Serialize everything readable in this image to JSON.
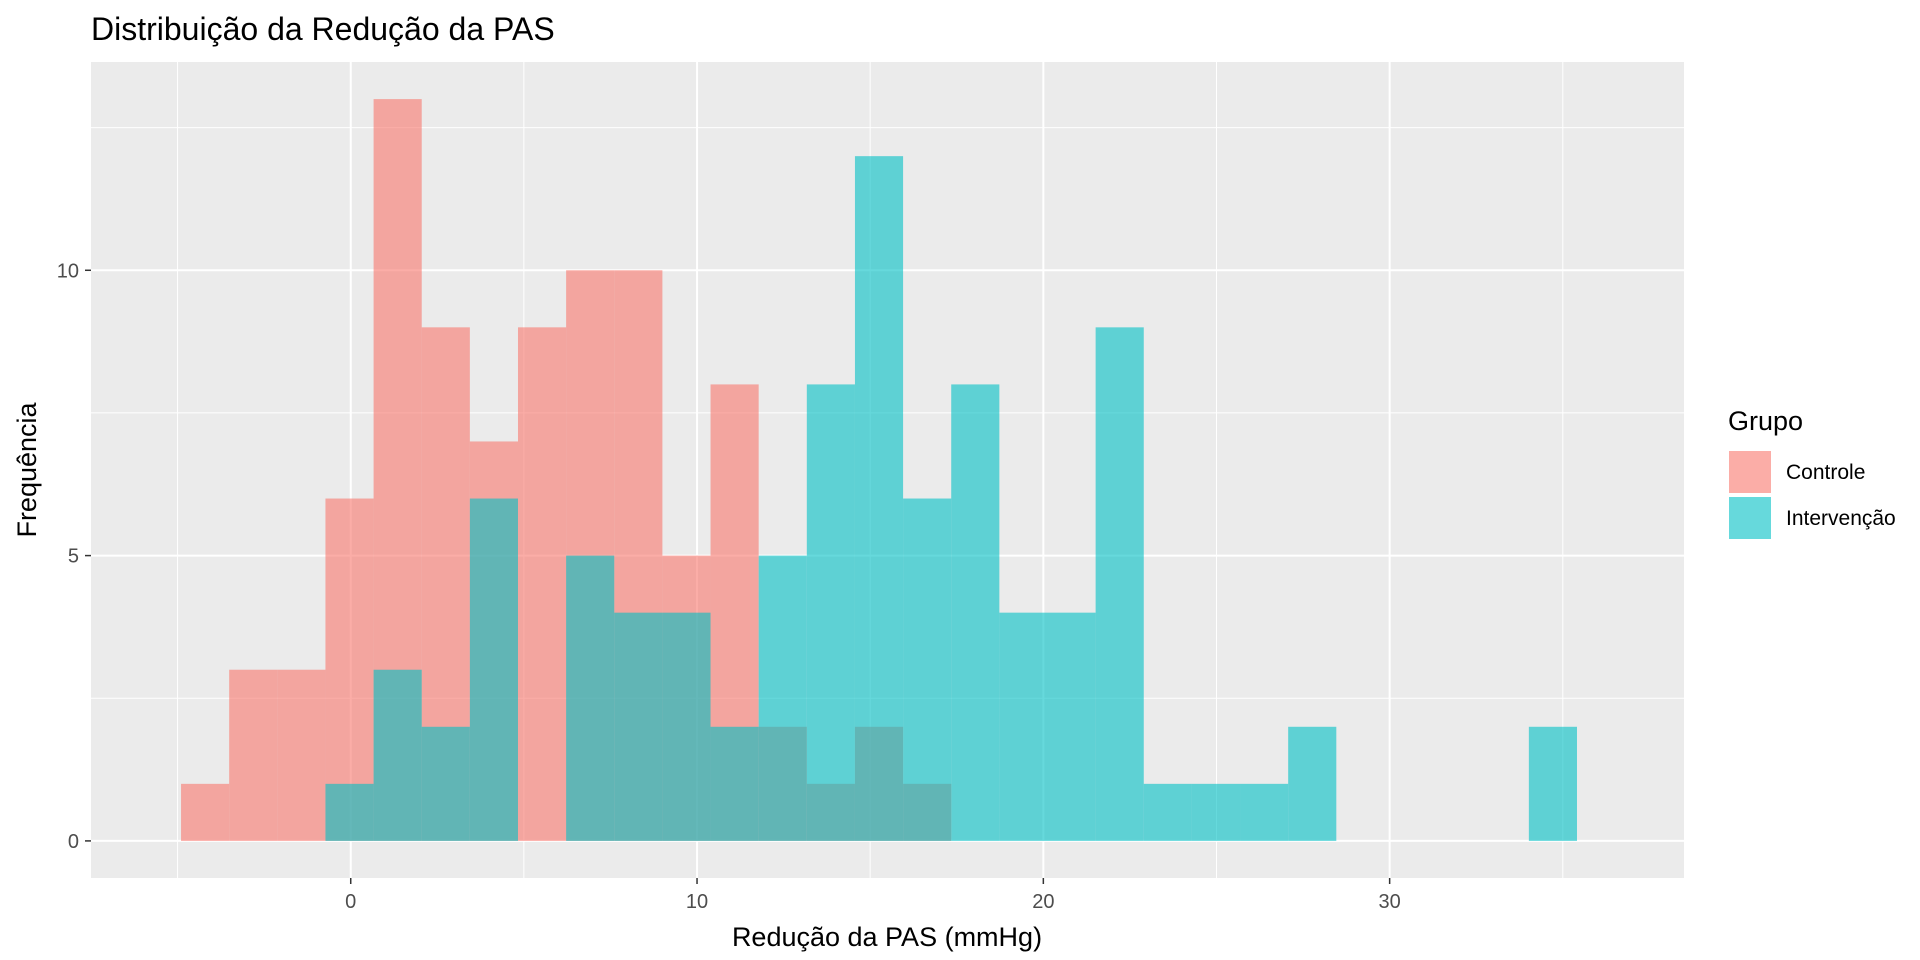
{
  "chart_data": {
    "type": "histogram",
    "title": "Distribuição da Redução da PAS",
    "xlabel": "Redução da PAS (mmHg)",
    "ylabel": "Frequência",
    "xlim": [
      -7.5,
      38.5
    ],
    "ylim": [
      -0.65,
      13.65
    ],
    "x_ticks": [
      0,
      10,
      20,
      30
    ],
    "y_ticks": [
      0,
      5,
      10
    ],
    "bin_width": 1.39,
    "bin_start": -4.9,
    "grid": true,
    "legend": {
      "title": "Grupo",
      "position": "right"
    },
    "series": [
      {
        "name": "Controle",
        "color": "#F8766D",
        "counts": [
          1,
          3,
          3,
          6,
          13,
          9,
          7,
          9,
          10,
          10,
          5,
          8,
          2,
          1,
          2,
          1
        ]
      },
      {
        "name": "Intervenção",
        "color": "#00BFC4",
        "counts": [
          0,
          0,
          0,
          1,
          3,
          2,
          6,
          0,
          5,
          4,
          4,
          2,
          5,
          8,
          12,
          6,
          8,
          4,
          4,
          9,
          1,
          1,
          1,
          2,
          0,
          0,
          0,
          0,
          2
        ]
      }
    ]
  }
}
